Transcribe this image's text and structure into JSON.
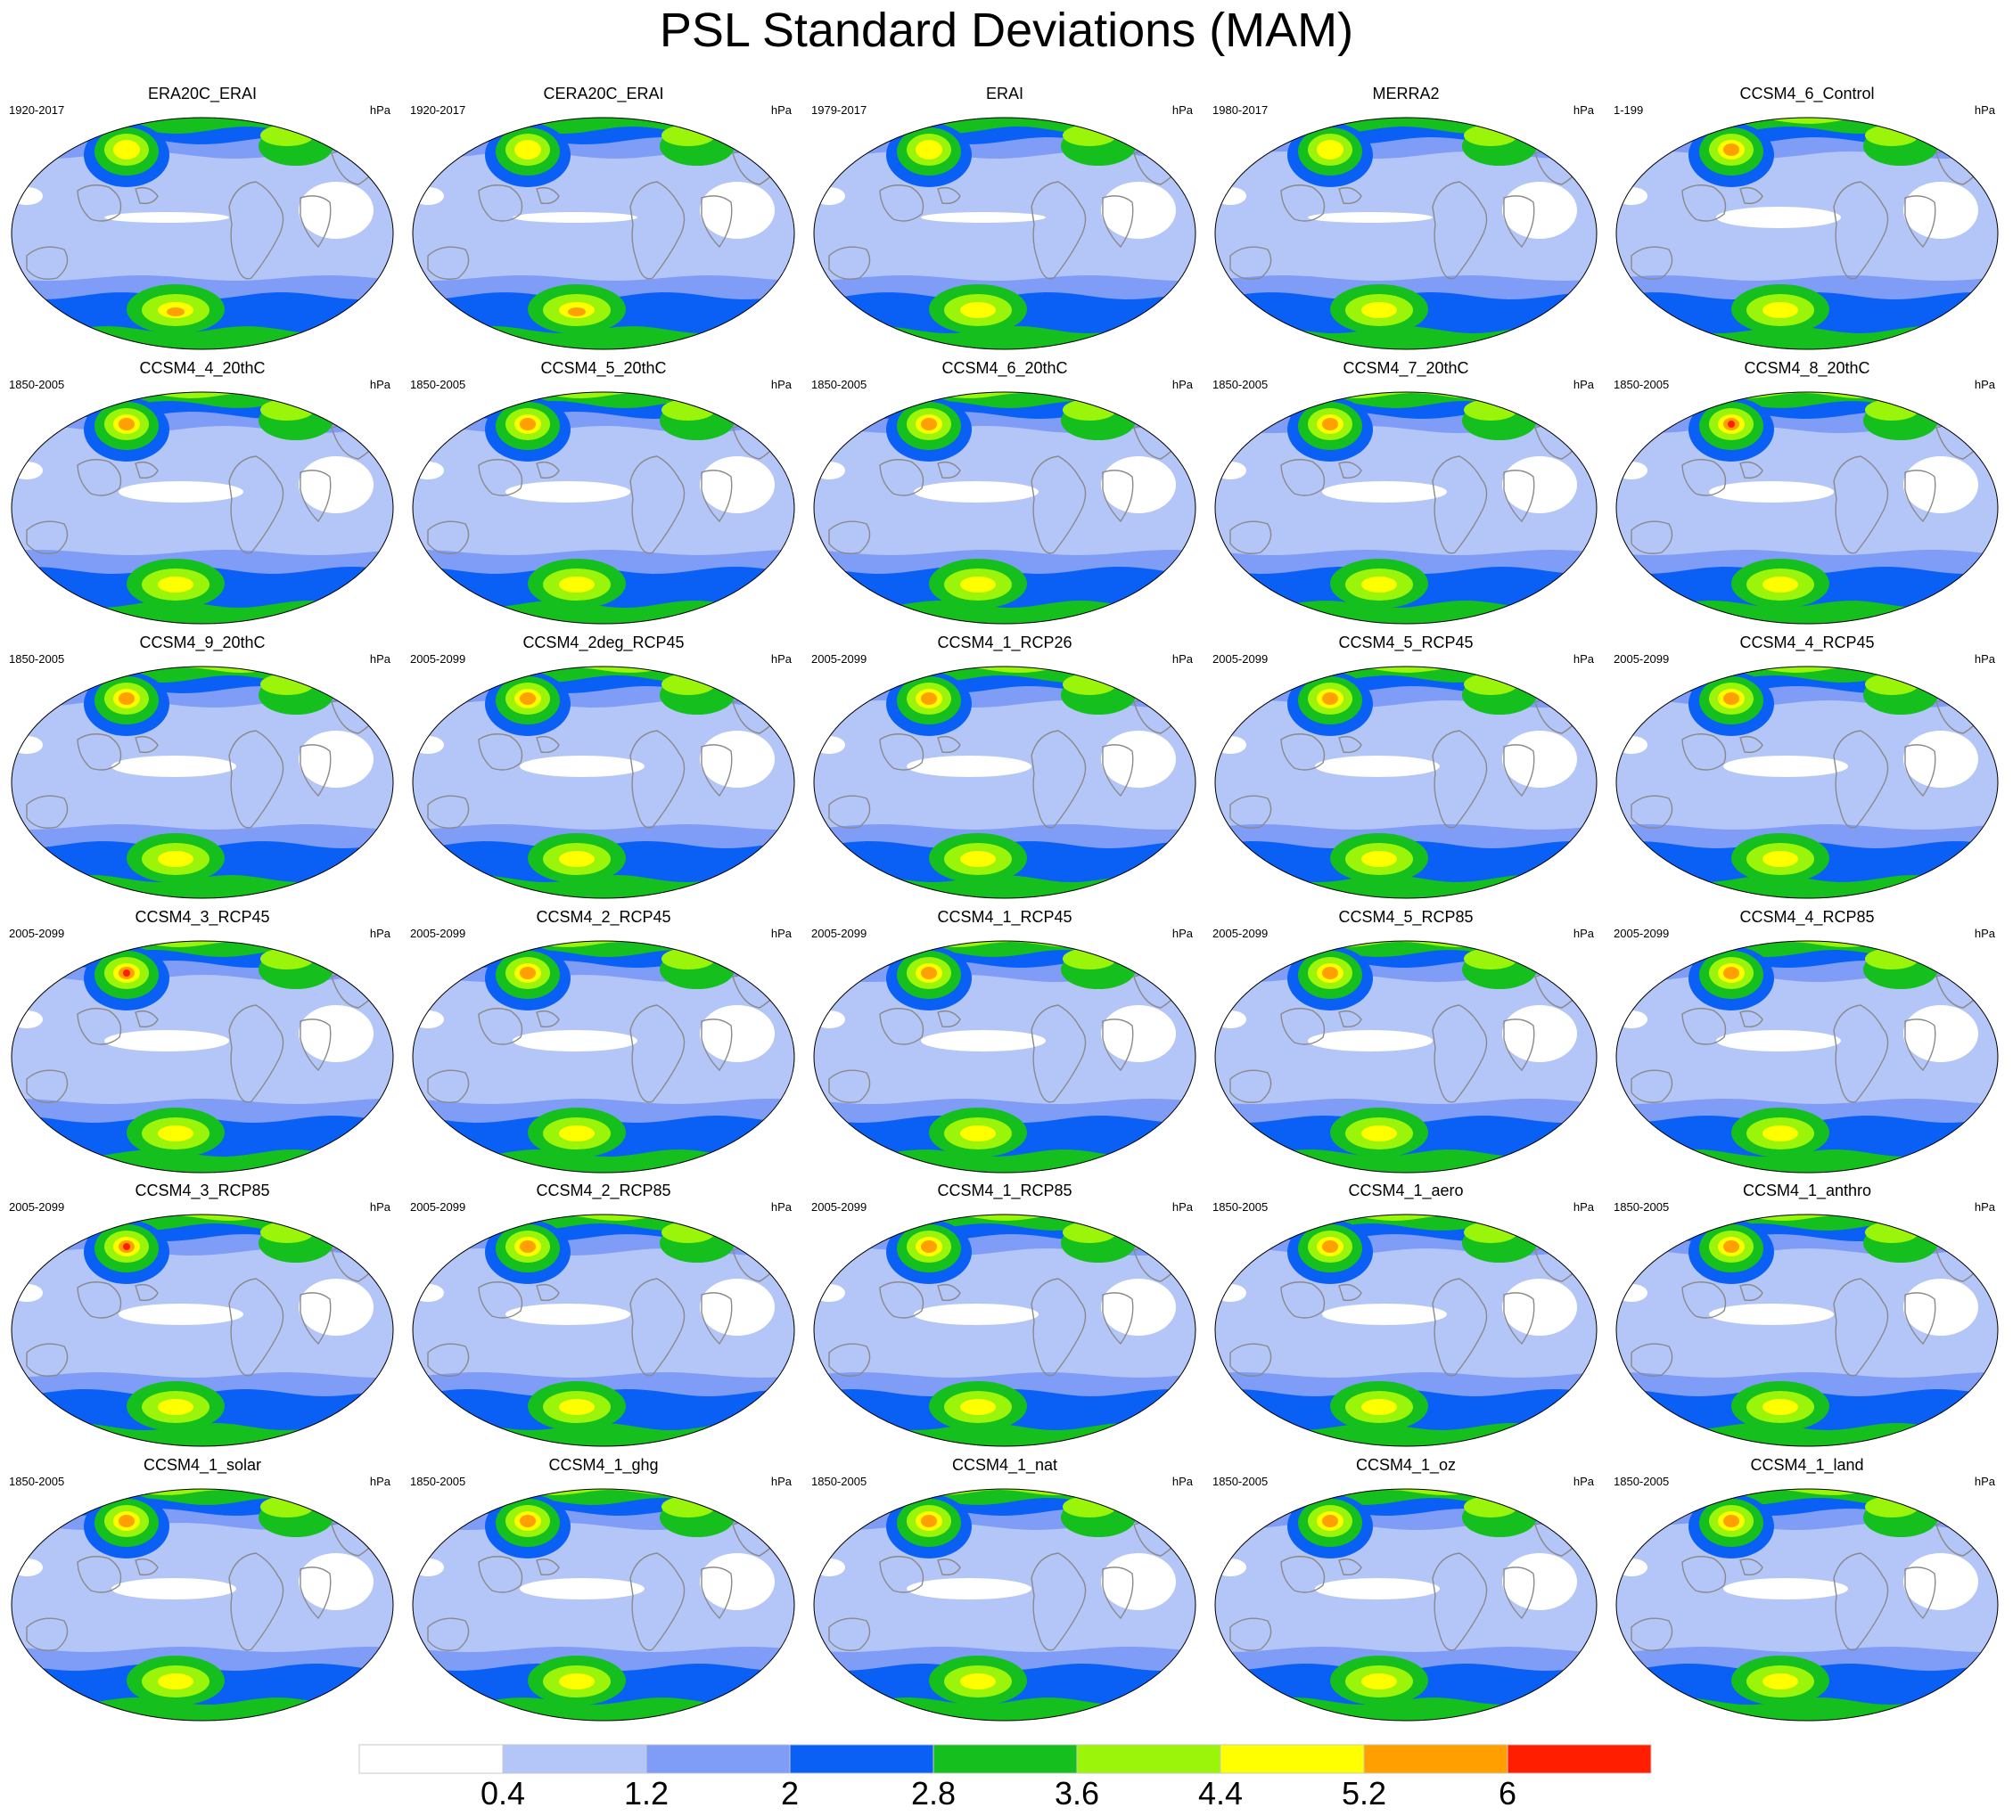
{
  "title": "PSL Standard Deviations (MAM)",
  "unit": "hPa",
  "panels": [
    {
      "title": "ERA20C_ERAI",
      "period": "1920-2017"
    },
    {
      "title": "CERA20C_ERAI",
      "period": "1920-2017"
    },
    {
      "title": "ERAI",
      "period": "1979-2017"
    },
    {
      "title": "MERRA2",
      "period": "1980-2017"
    },
    {
      "title": "CCSM4_6_Control",
      "period": "1-199"
    },
    {
      "title": "CCSM4_4_20thC",
      "period": "1850-2005"
    },
    {
      "title": "CCSM4_5_20thC",
      "period": "1850-2005"
    },
    {
      "title": "CCSM4_6_20thC",
      "period": "1850-2005"
    },
    {
      "title": "CCSM4_7_20thC",
      "period": "1850-2005"
    },
    {
      "title": "CCSM4_8_20thC",
      "period": "1850-2005"
    },
    {
      "title": "CCSM4_9_20thC",
      "period": "1850-2005"
    },
    {
      "title": "CCSM4_2deg_RCP45",
      "period": "2005-2099"
    },
    {
      "title": "CCSM4_1_RCP26",
      "period": "2005-2099"
    },
    {
      "title": "CCSM4_5_RCP45",
      "period": "2005-2099"
    },
    {
      "title": "CCSM4_4_RCP45",
      "period": "2005-2099"
    },
    {
      "title": "CCSM4_3_RCP45",
      "period": "2005-2099"
    },
    {
      "title": "CCSM4_2_RCP45",
      "period": "2005-2099"
    },
    {
      "title": "CCSM4_1_RCP45",
      "period": "2005-2099"
    },
    {
      "title": "CCSM4_5_RCP85",
      "period": "2005-2099"
    },
    {
      "title": "CCSM4_4_RCP85",
      "period": "2005-2099"
    },
    {
      "title": "CCSM4_3_RCP85",
      "period": "2005-2099"
    },
    {
      "title": "CCSM4_2_RCP85",
      "period": "2005-2099"
    },
    {
      "title": "CCSM4_1_RCP85",
      "period": "2005-2099"
    },
    {
      "title": "CCSM4_1_aero",
      "period": "1850-2005"
    },
    {
      "title": "CCSM4_1_anthro",
      "period": "1850-2005"
    },
    {
      "title": "CCSM4_1_solar",
      "period": "1850-2005"
    },
    {
      "title": "CCSM4_1_ghg",
      "period": "1850-2005"
    },
    {
      "title": "CCSM4_1_nat",
      "period": "1850-2005"
    },
    {
      "title": "CCSM4_1_oz",
      "period": "1850-2005"
    },
    {
      "title": "CCSM4_1_land",
      "period": "1850-2005"
    }
  ],
  "colorbar": {
    "labels": [
      "0.4",
      "1.2",
      "2",
      "2.8",
      "3.6",
      "4.4",
      "5.2",
      "6"
    ],
    "colors": [
      "#ffffff",
      "#b4c5f8",
      "#7f9cf6",
      "#0a5ff5",
      "#14bf1e",
      "#9bf50a",
      "#ffff00",
      "#ffa000",
      "#ff1e00"
    ]
  },
  "map_colors": {
    "land_outline": "#8a8a8a",
    "map_border": "#000000"
  }
}
